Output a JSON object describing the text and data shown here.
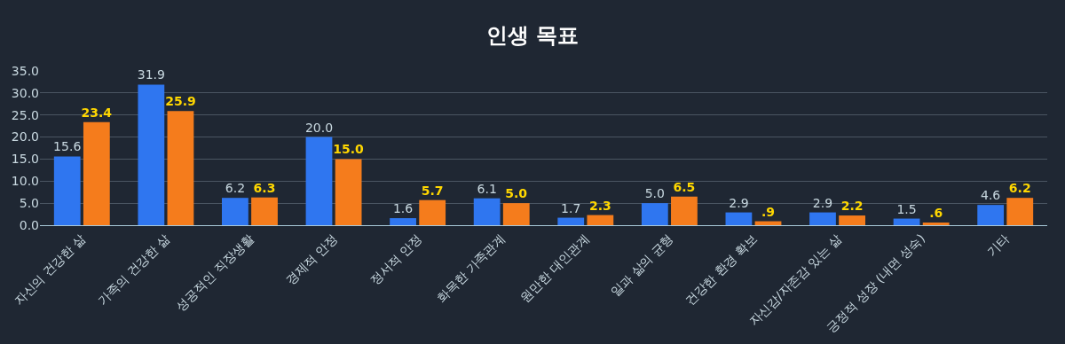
{
  "chart_data": {
    "type": "bar",
    "title": "인생 목표",
    "categories": [
      "자신의 건강한 삶",
      "가족의 건강한 삶",
      "성공적인 직장생활",
      "경제적 안정",
      "정서적 안정",
      "화목한 가족관계",
      "원만한 대인관계",
      "일과 삶의 균형",
      "건강한 환경 확보",
      "자신감/자존감 있는 삶",
      "긍정적 성장 (내면 성숙)",
      "기타"
    ],
    "series": [
      {
        "color": "#2f76f0",
        "values": [
          15.6,
          31.9,
          6.2,
          20.0,
          1.6,
          6.1,
          1.7,
          5.0,
          2.9,
          2.9,
          1.5,
          4.6
        ],
        "value_labels": [
          "15.6",
          "31.9",
          "6.2",
          "20.0",
          "1.6",
          "6.1",
          "1.7",
          "5.0",
          "2.9",
          "2.9",
          "1.5",
          "4.6"
        ]
      },
      {
        "color": "#f57c1c",
        "values": [
          23.4,
          25.9,
          6.3,
          15.0,
          5.7,
          5.0,
          2.3,
          6.5,
          0.9,
          2.2,
          0.6,
          6.2
        ],
        "value_labels": [
          "23.4",
          "25.9",
          "6.3",
          "15.0",
          "5.7",
          "5.0",
          "2.3",
          "6.5",
          ".9",
          "2.2",
          ".6",
          "6.2"
        ]
      }
    ],
    "ylim": [
      0,
      35
    ],
    "yticks": [
      {
        "value": 0,
        "label": "0.0"
      },
      {
        "value": 5,
        "label": "5.0"
      },
      {
        "value": 10,
        "label": "10.0"
      },
      {
        "value": 15,
        "label": "15.0"
      },
      {
        "value": 20,
        "label": "20.0"
      },
      {
        "value": 25,
        "label": "25.0"
      },
      {
        "value": 30,
        "label": "30.0"
      },
      {
        "value": 35,
        "label": "35.0"
      }
    ],
    "grid": "y"
  }
}
